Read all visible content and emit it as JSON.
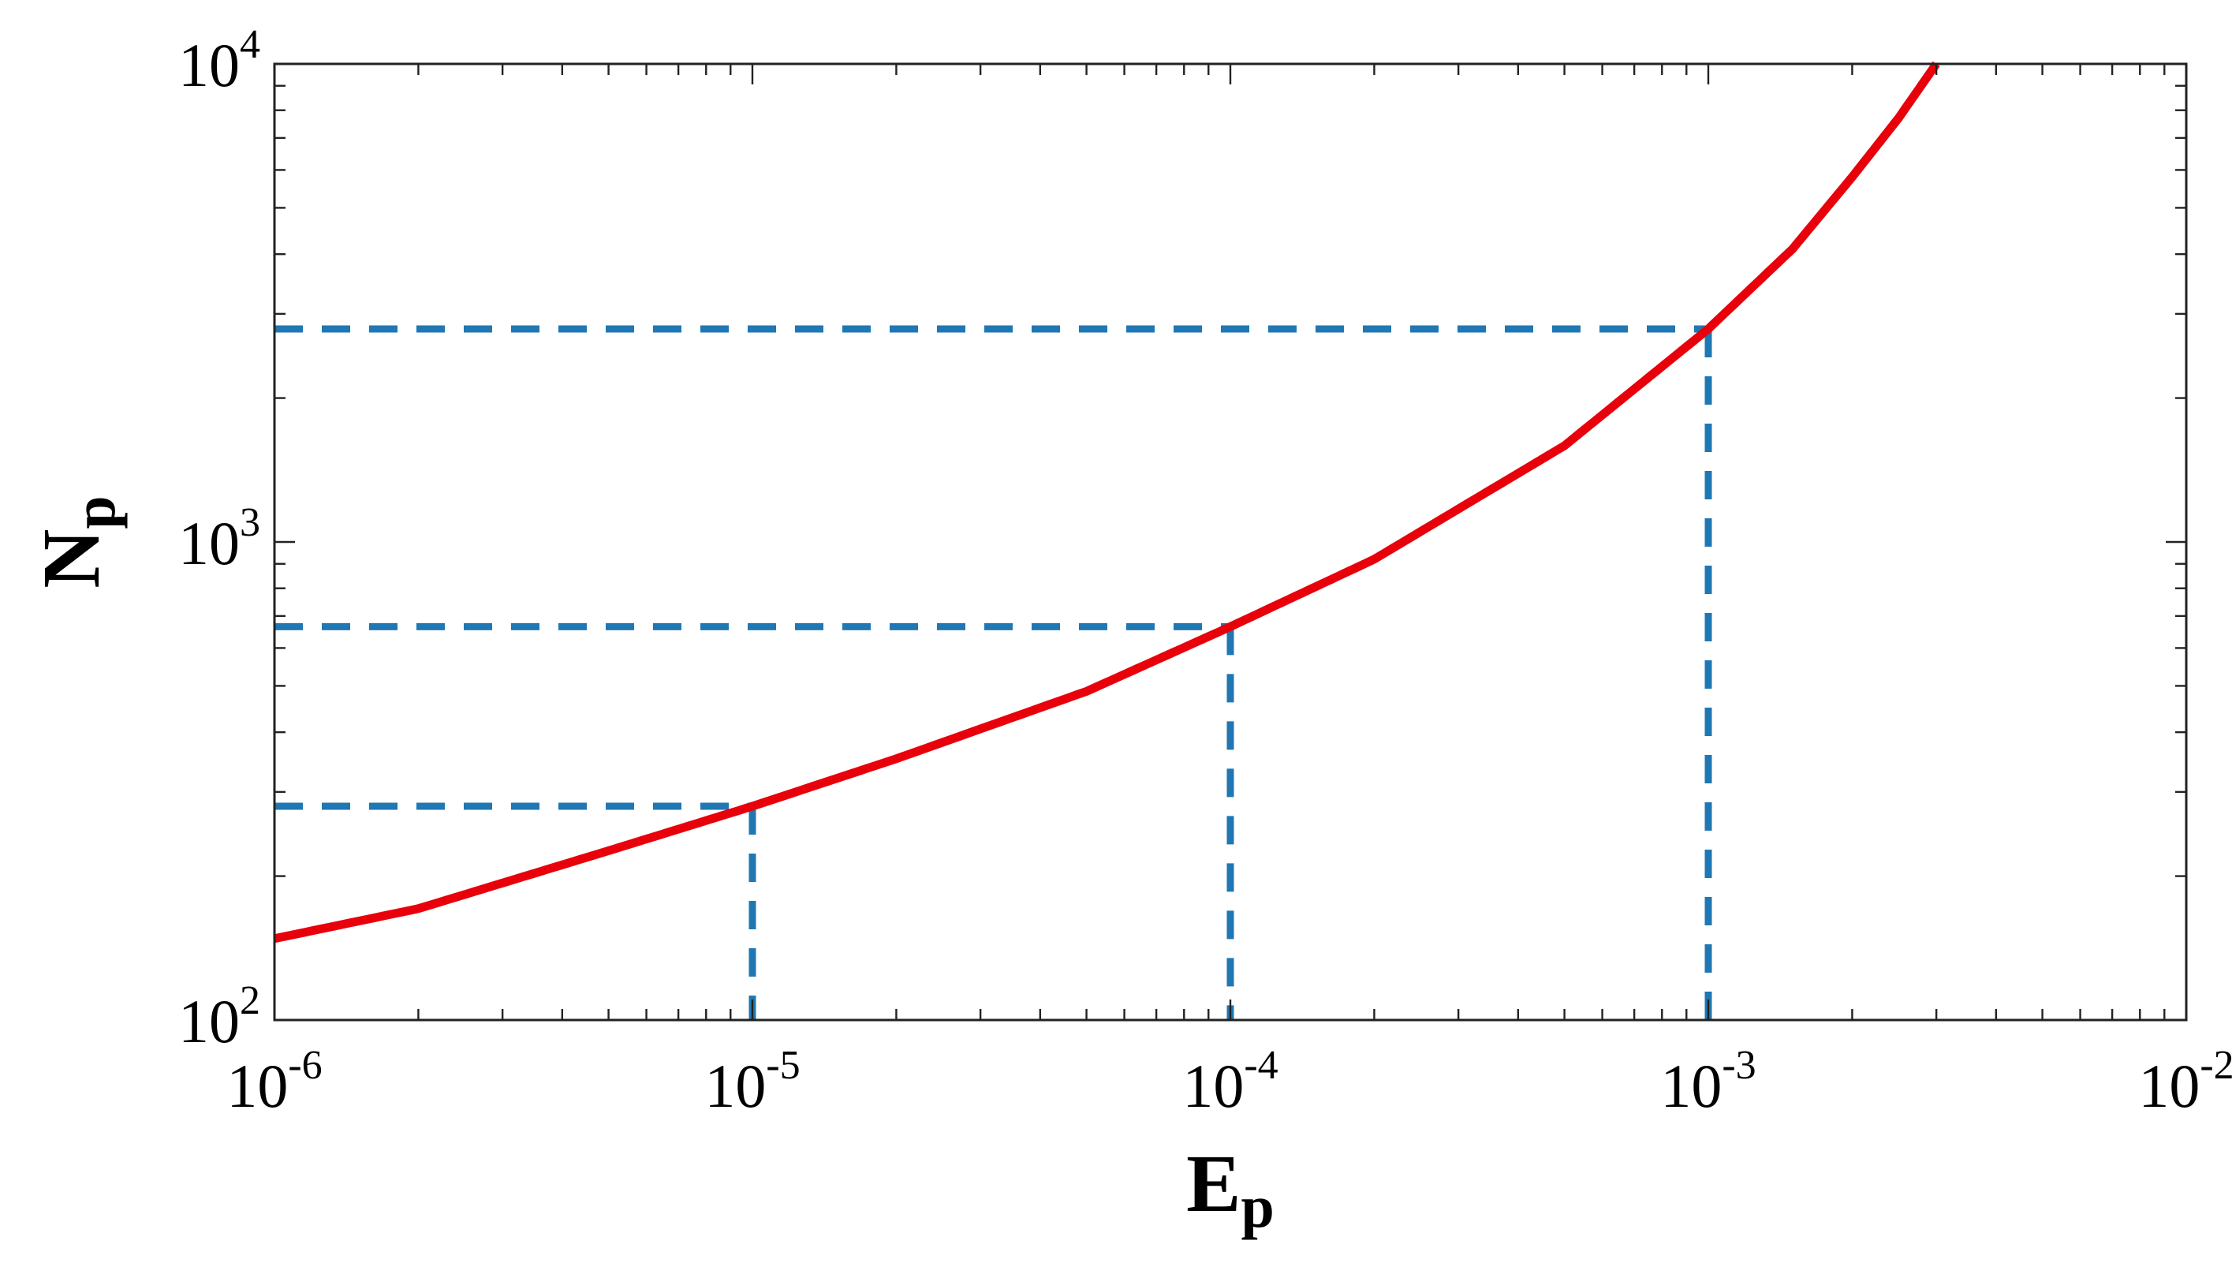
{
  "chart_data": {
    "type": "line",
    "title": "",
    "xlabel": {
      "main": "E",
      "sub": "p"
    },
    "ylabel": {
      "main": "N",
      "sub": "p"
    },
    "xscale": "log",
    "yscale": "log",
    "xlim": [
      1e-06,
      0.01
    ],
    "ylim": [
      100,
      10000
    ],
    "grid": false,
    "legend": "none",
    "x_ticks": [
      {
        "value": 1e-06,
        "base": "10",
        "exp": "-6"
      },
      {
        "value": 1e-05,
        "base": "10",
        "exp": "-5"
      },
      {
        "value": 0.0001,
        "base": "10",
        "exp": "-4"
      },
      {
        "value": 0.001,
        "base": "10",
        "exp": "-3"
      },
      {
        "value": 0.01,
        "base": "10",
        "exp": "-2"
      }
    ],
    "y_ticks": [
      {
        "value": 100,
        "base": "10",
        "exp": "2"
      },
      {
        "value": 1000,
        "base": "10",
        "exp": "3"
      },
      {
        "value": 10000,
        "base": "10",
        "exp": "4"
      }
    ],
    "series": [
      {
        "color": "#e8000b",
        "style": "solid",
        "x": [
          1e-06,
          2e-06,
          5e-06,
          1e-05,
          2e-05,
          5e-05,
          0.0001,
          0.0002,
          0.0005,
          0.001,
          0.0015,
          0.002,
          0.0025,
          0.003
        ],
        "y": [
          148,
          171,
          226,
          280,
          352,
          487,
          665,
          920,
          1590,
          2790,
          4100,
          5800,
          7700,
          10000
        ]
      }
    ],
    "reference_lines": [
      {
        "x": 1e-05,
        "y": 280,
        "color": "#1f77b4",
        "style": "dashed"
      },
      {
        "x": 0.0001,
        "y": 665,
        "color": "#1f77b4",
        "style": "dashed"
      },
      {
        "x": 0.001,
        "y": 2790,
        "color": "#1f77b4",
        "style": "dashed"
      }
    ]
  }
}
